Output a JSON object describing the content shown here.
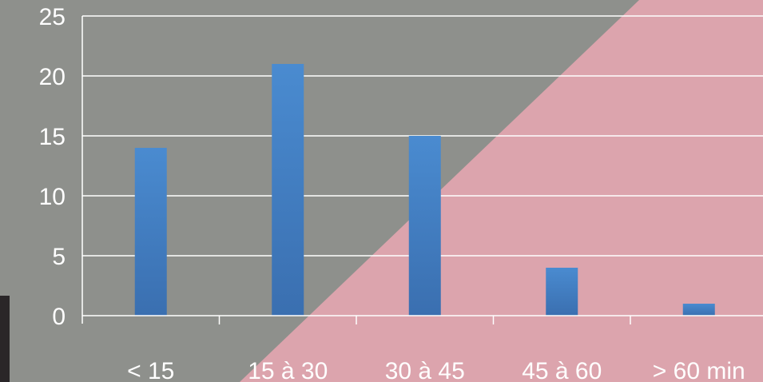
{
  "chart_data": {
    "type": "bar",
    "categories": [
      "< 15",
      "15 à 30",
      "30 à 45",
      "45 à 60",
      "> 60 min"
    ],
    "values": [
      14,
      21,
      15,
      4,
      1
    ],
    "ylim": [
      0,
      25
    ],
    "yticks": [
      "0",
      "5",
      "10",
      "15",
      "20",
      "25"
    ],
    "grid": true,
    "legend": "none"
  },
  "colors": {
    "bar": "#4a8bd0",
    "bar_dark": "#3a6fb0",
    "gridline": "#ffffff",
    "text": "#ffffff",
    "background_gray": "#8e908c",
    "background_pink": "#dca4ad"
  }
}
